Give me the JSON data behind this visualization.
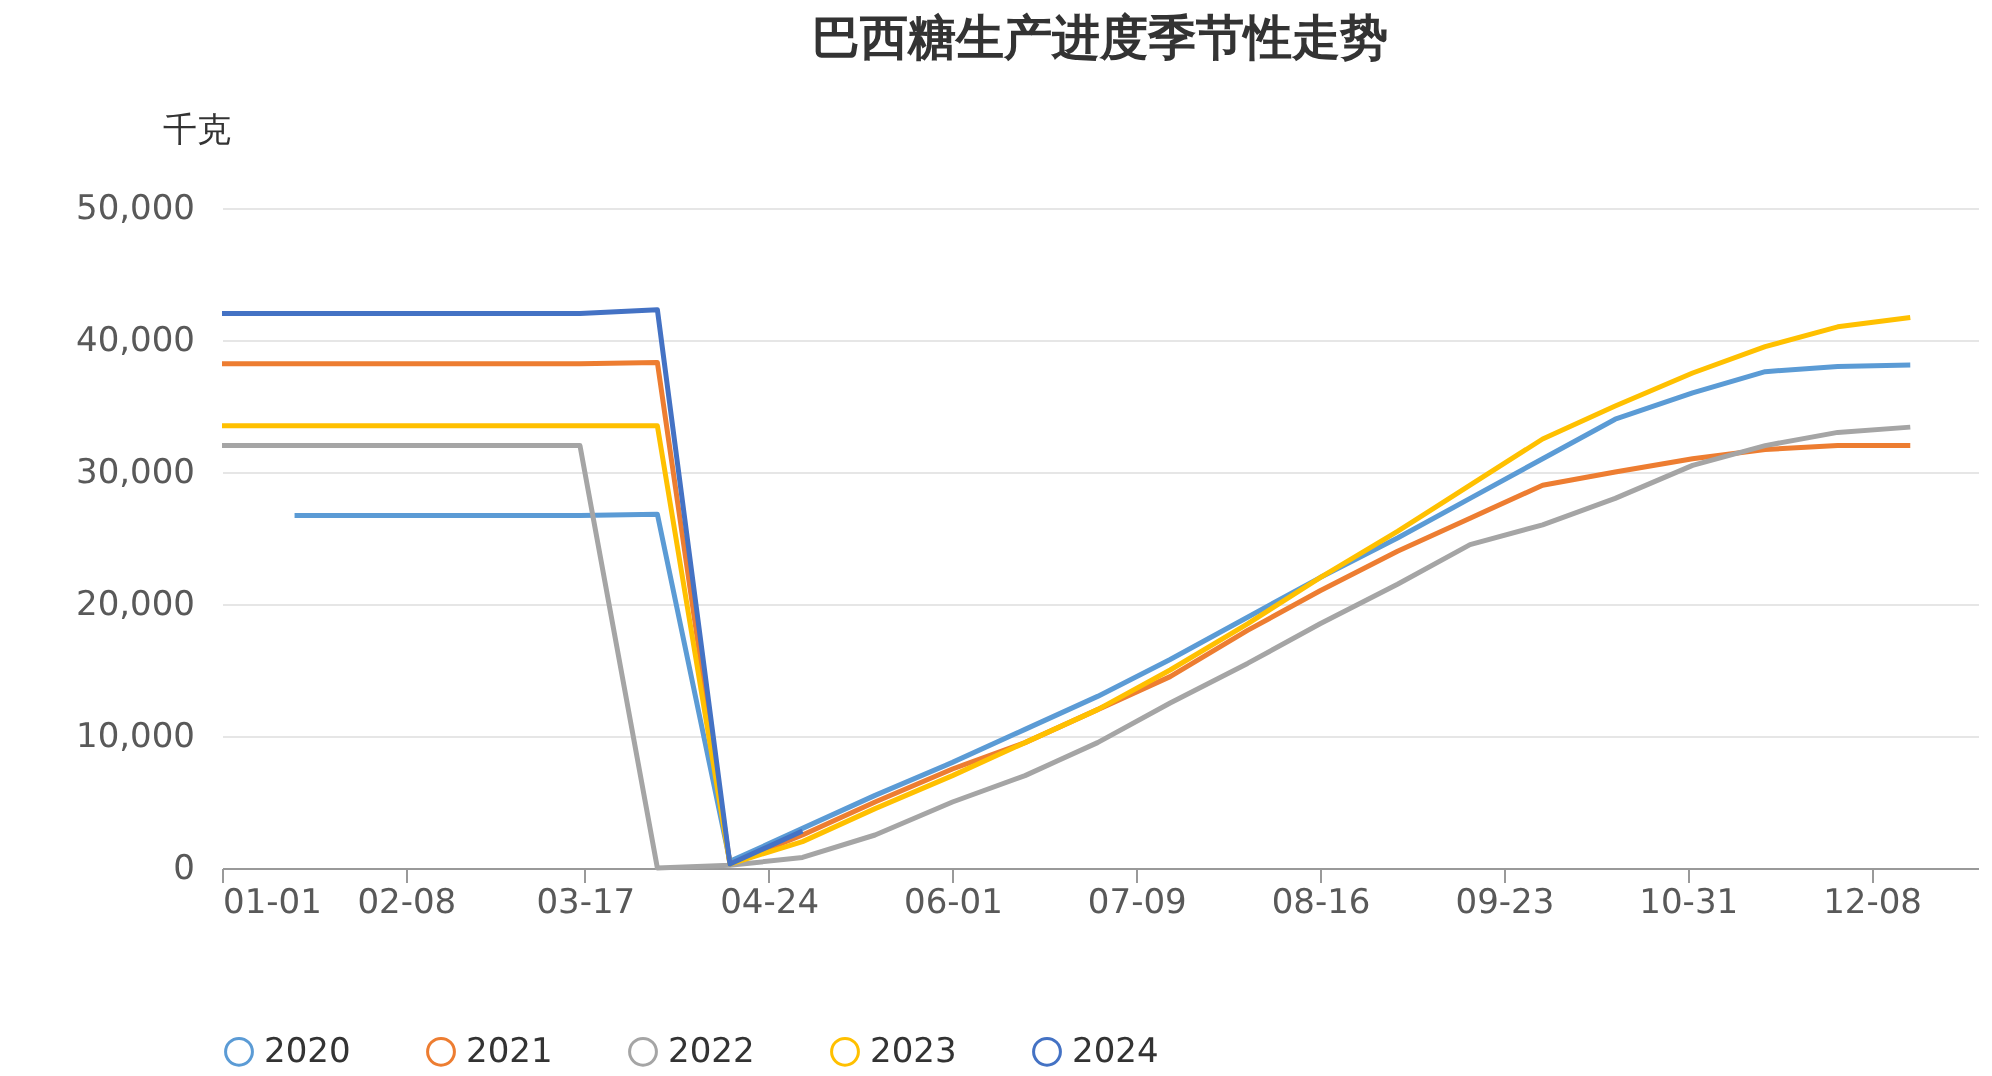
{
  "chart_data": {
    "type": "line",
    "title": "巴西糖生产进度季节性走势",
    "ylabel": "千克",
    "xlim": [
      "--01-01",
      "--12-30"
    ],
    "xticks": [
      {
        "value": "--01-01",
        "label": "01-01"
      },
      {
        "value": "--02-08",
        "label": "02-08"
      },
      {
        "value": "--03-17",
        "label": "03-17"
      },
      {
        "value": "--04-24",
        "label": "04-24"
      },
      {
        "value": "--06-01",
        "label": "06-01"
      },
      {
        "value": "--07-09",
        "label": "07-09"
      },
      {
        "value": "--08-16",
        "label": "08-16"
      },
      {
        "value": "--09-23",
        "label": "09-23"
      },
      {
        "value": "--10-31",
        "label": "10-31"
      },
      {
        "value": "--12-08",
        "label": "12-08"
      }
    ],
    "ylim": [
      0,
      50000
    ],
    "yticks": [
      0,
      {
        "value": 10000,
        "label": "10,000"
      },
      {
        "value": 20000,
        "label": "20,000"
      },
      {
        "value": 30000,
        "label": "30,000"
      },
      {
        "value": 40000,
        "label": "40,000"
      },
      {
        "value": 50000,
        "label": "50,000"
      }
    ],
    "grid": "y",
    "legend": "bottom",
    "series": [
      {
        "name": "2020",
        "color": "#5b9bd5",
        "x": [
          "--01-16",
          "--03-16",
          "--04-01",
          "--04-16",
          "--05-01",
          "--05-16",
          "--06-01",
          "--06-16",
          "--07-01",
          "--07-16",
          "--08-01",
          "--08-16",
          "--09-01",
          "--09-16",
          "--10-01",
          "--10-16",
          "--11-01",
          "--11-16",
          "--12-01",
          "--12-16"
        ],
        "values": [
          26700,
          26700,
          26800,
          500,
          3000,
          5500,
          8000,
          10500,
          13000,
          15800,
          19000,
          22000,
          25000,
          28000,
          31000,
          34000,
          36000,
          37600,
          38000,
          38100
        ]
      },
      {
        "name": "2021",
        "color": "#ed7d31",
        "x": [
          "--01-01",
          "--03-16",
          "--04-01",
          "--04-16",
          "--05-01",
          "--05-16",
          "--06-01",
          "--06-16",
          "--07-01",
          "--07-16",
          "--08-01",
          "--08-16",
          "--09-01",
          "--09-16",
          "--10-01",
          "--10-16",
          "--11-01",
          "--11-16",
          "--12-01",
          "--12-16"
        ],
        "values": [
          38200,
          38200,
          38300,
          300,
          2500,
          5000,
          7500,
          9500,
          12000,
          14500,
          18000,
          21000,
          24000,
          26500,
          29000,
          30000,
          31000,
          31700,
          32000,
          32000
        ]
      },
      {
        "name": "2022",
        "color": "#a5a5a5",
        "x": [
          "--01-01",
          "--03-16",
          "--04-01",
          "--04-16",
          "--05-01",
          "--05-16",
          "--06-01",
          "--06-16",
          "--07-01",
          "--07-16",
          "--08-01",
          "--08-16",
          "--09-01",
          "--09-16",
          "--10-01",
          "--10-16",
          "--11-01",
          "--11-16",
          "--12-01",
          "--12-16"
        ],
        "values": [
          32000,
          32000,
          0,
          200,
          800,
          2500,
          5000,
          7000,
          9500,
          12500,
          15500,
          18500,
          21500,
          24500,
          26000,
          28000,
          30500,
          32000,
          33000,
          33400
        ]
      },
      {
        "name": "2023",
        "color": "#ffc000",
        "x": [
          "--01-01",
          "--03-16",
          "--04-01",
          "--04-16",
          "--05-01",
          "--05-16",
          "--06-01",
          "--06-16",
          "--07-01",
          "--07-16",
          "--08-01",
          "--08-16",
          "--09-01",
          "--09-16",
          "--10-01",
          "--10-16",
          "--11-01",
          "--11-16",
          "--12-01",
          "--12-16"
        ],
        "values": [
          33500,
          33500,
          33500,
          300,
          2000,
          4500,
          7000,
          9500,
          12000,
          15000,
          18500,
          22000,
          25500,
          29000,
          32500,
          35000,
          37500,
          39500,
          41000,
          41700
        ]
      },
      {
        "name": "2024",
        "color": "#4472c4",
        "x": [
          "--01-01",
          "--03-16",
          "--04-01",
          "--04-16",
          "--05-01"
        ],
        "values": [
          42000,
          42000,
          42300,
          300,
          2800
        ]
      }
    ]
  }
}
